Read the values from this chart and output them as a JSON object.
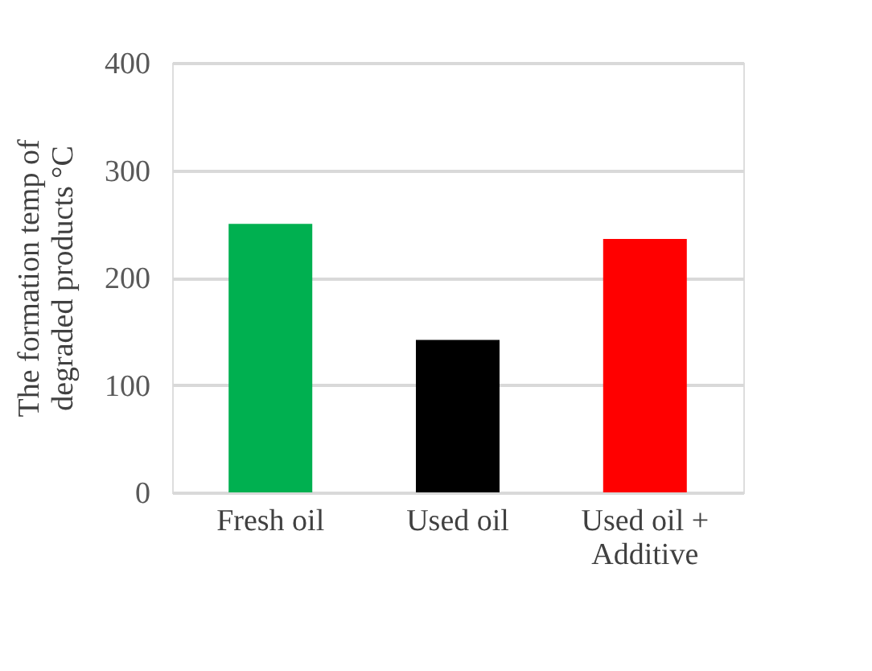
{
  "chart_data": {
    "type": "bar",
    "categories": [
      "Fresh oil",
      "Used oil",
      "Used oil + Additive"
    ],
    "values": [
      250,
      142,
      236
    ],
    "colors": [
      "#00b050",
      "#000000",
      "#ff0000"
    ],
    "ylabel": "The formation temp of degraded products °C",
    "ylim": [
      0,
      400
    ],
    "yticks": [
      0,
      100,
      200,
      300,
      400
    ],
    "grid": "y"
  }
}
